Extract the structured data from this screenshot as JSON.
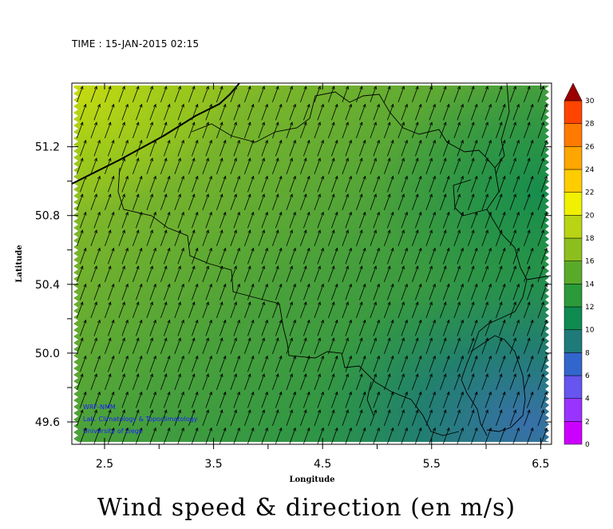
{
  "time_label": "TIME : 15-JAN-2015 02:15",
  "title": "Wind speed & direction (en m/s)",
  "credits": [
    "WRF-NMM",
    "Lab. Climatology & Topoclimatology",
    "University of Liege"
  ],
  "colors": {
    "palette": [
      "#cc00ff",
      "#9933ff",
      "#6655ee",
      "#3366cc",
      "#1f7a7a",
      "#0f8a50",
      "#2a9a3a",
      "#5aaa2a",
      "#8cbf1e",
      "#b8d414",
      "#f0f000",
      "#ffcc00",
      "#ffa500",
      "#ff7a00",
      "#ff4400",
      "#e00000",
      "#9a0000"
    ],
    "borders": "#000000",
    "arrows": "#000000"
  },
  "chart_data": {
    "type": "heatmap",
    "xlabel": "Longitude",
    "ylabel": "Latitude",
    "xlim": [
      2.2,
      6.6
    ],
    "ylim": [
      49.47,
      51.57
    ],
    "x_ticks": [
      "2.5",
      "3.5",
      "4.5",
      "5.5",
      "6.5"
    ],
    "y_ticks": [
      "49.6",
      "50.0",
      "50.4",
      "50.8",
      "51.2"
    ],
    "colorbar": {
      "min": 0,
      "max": 30,
      "step": 2,
      "labels": [
        "0",
        "2",
        "4",
        "6",
        "8",
        "10",
        "12",
        "14",
        "16",
        "18",
        "20",
        "22",
        "24",
        "26",
        "28",
        "30"
      ]
    },
    "wind_direction_deg_from_north": 20,
    "speed_field_summary": [
      {
        "region": "northwest coast",
        "speed_ms": 17
      },
      {
        "region": "central Belgium",
        "speed_ms": 14
      },
      {
        "region": "eastern border",
        "speed_ms": 11
      },
      {
        "region": "southeast corner",
        "speed_ms": 7
      }
    ]
  }
}
